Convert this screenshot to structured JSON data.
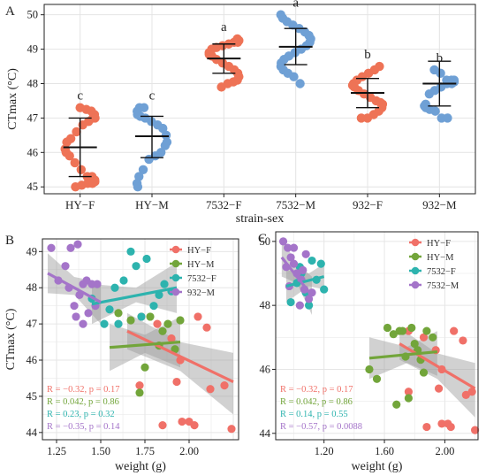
{
  "colors": {
    "HY-F": "#EE7356",
    "HY-M": "#6FA0D5",
    "pink": "#F07068",
    "green": "#72A53A",
    "teal": "#2DB3AE",
    "purple": "#A474C9"
  },
  "chart_data": [
    {
      "panel": "A",
      "type": "scatter",
      "xlabel": "strain-sex",
      "ylabel": "CTmax (°C)",
      "ylim": [
        44.8,
        50.3
      ],
      "yticks": [
        "45",
        "46",
        "47",
        "48",
        "49",
        "50"
      ],
      "categories": [
        "HY−F",
        "HY−M",
        "7532−F",
        "7532−M",
        "932−F",
        "932−M"
      ],
      "letters": [
        "c",
        "c",
        "a",
        "a",
        "b",
        "b"
      ],
      "groups": [
        {
          "name": "HY−F",
          "mean": 46.15,
          "lo": 45.3,
          "hi": 47.0,
          "values": [
            47.3,
            47.25,
            47.2,
            47.1,
            47.0,
            47.0,
            46.9,
            46.8,
            46.6,
            46.4,
            46.3,
            46.1,
            46.0,
            45.9,
            45.7,
            45.5,
            45.3,
            45.3,
            45.2,
            45.15,
            45.1,
            45.1,
            45.05,
            45.0
          ]
        },
        {
          "name": "HY−M",
          "mean": 46.47,
          "lo": 45.85,
          "hi": 47.05,
          "values": [
            47.3,
            47.3,
            47.2,
            47.1,
            47.05,
            47.0,
            46.9,
            46.8,
            46.7,
            46.5,
            46.3,
            46.2,
            46.0,
            45.9,
            45.8,
            45.5,
            45.3,
            45.1,
            45.0
          ]
        },
        {
          "name": "7532−F",
          "mean": 48.73,
          "lo": 48.3,
          "hi": 49.15,
          "values": [
            49.3,
            49.25,
            49.2,
            49.2,
            49.15,
            49.1,
            49.05,
            49.0,
            48.9,
            48.85,
            48.8,
            48.7,
            48.6,
            48.5,
            48.4,
            48.3,
            48.2,
            48.1,
            48.05,
            48.0,
            47.9
          ]
        },
        {
          "name": "7532−M",
          "mean": 49.07,
          "lo": 48.55,
          "hi": 49.6,
          "values": [
            50.0,
            49.9,
            49.8,
            49.7,
            49.6,
            49.5,
            49.4,
            49.3,
            49.2,
            49.1,
            49.0,
            48.9,
            48.8,
            48.7,
            48.6,
            48.5,
            48.4,
            48.3,
            48.2,
            48.0
          ]
        },
        {
          "name": "932−F",
          "mean": 47.73,
          "lo": 47.3,
          "hi": 48.15,
          "values": [
            48.5,
            48.4,
            48.3,
            48.2,
            48.1,
            48.0,
            47.95,
            47.9,
            47.8,
            47.7,
            47.6,
            47.5,
            47.45,
            47.4,
            47.3,
            47.2,
            47.1,
            47.0,
            47.0
          ]
        },
        {
          "name": "932−M",
          "mean": 48.0,
          "lo": 47.35,
          "hi": 48.65,
          "values": [
            48.4,
            48.3,
            48.1,
            48.1,
            48.1,
            48.05,
            48.0,
            48.0,
            47.9,
            47.8,
            47.7,
            47.4,
            47.35,
            47.3,
            47.25,
            47.2,
            47.0,
            47.0
          ]
        }
      ]
    },
    {
      "panel": "B",
      "type": "scatter",
      "xlabel": "weight (g)",
      "ylabel": "CTmax (°C)",
      "xlim": [
        1.17,
        2.28
      ],
      "ylim": [
        43.8,
        49.35
      ],
      "xticks": [
        1.25,
        1.5,
        1.75,
        2.0
      ],
      "xticklabels": [
        "1.25",
        "1.50",
        "1.75",
        "2.00"
      ],
      "yticks": [
        44,
        45,
        46,
        47,
        48,
        49
      ],
      "legend": [
        "HY−F",
        "HY−M",
        "7532−F",
        "932−M"
      ],
      "stats": [
        "R = −0.32, p = 0.17",
        "R = 0.042, p = 0.86",
        "R = 0.23, p = 0.32",
        "R = −0.35, p = 0.14"
      ],
      "series": [
        {
          "name": "HY−F",
          "color": "#F07068",
          "points": [
            [
              1.73,
              47.2
            ],
            [
              1.82,
              47.0
            ],
            [
              1.9,
              46.6
            ],
            [
              1.95,
              46.0
            ],
            [
              2.05,
              47.2
            ],
            [
              2.1,
              46.9
            ],
            [
              1.93,
              45.4
            ],
            [
              2.0,
              44.3
            ],
            [
              2.12,
              45.2
            ],
            [
              2.2,
              45.3
            ],
            [
              1.72,
              45.3
            ],
            [
              2.24,
              44.1
            ],
            [
              1.96,
              44.3
            ],
            [
              2.03,
              44.2
            ],
            [
              1.85,
              44.2
            ]
          ],
          "line": [
            [
              1.65,
              46.8
            ],
            [
              2.25,
              45.4
            ]
          ],
          "band": [
            [
              1.65,
              47.3,
              46.3
            ],
            [
              1.95,
              46.5,
              45.7
            ],
            [
              2.25,
              46.2,
              44.5
            ]
          ]
        },
        {
          "name": "HY−M",
          "color": "#72A53A",
          "points": [
            [
              1.6,
              47.3
            ],
            [
              1.67,
              47.1
            ],
            [
              1.72,
              45.1
            ],
            [
              1.78,
              47.2
            ],
            [
              1.83,
              46.4
            ],
            [
              1.88,
              47.0
            ],
            [
              1.92,
              46.3
            ],
            [
              1.75,
              45.8
            ],
            [
              1.95,
              47.1
            ],
            [
              1.85,
              46.8
            ]
          ],
          "line": [
            [
              1.55,
              46.35
            ],
            [
              1.95,
              46.5
            ]
          ],
          "band": [
            [
              1.55,
              47.0,
              45.7
            ],
            [
              1.75,
              46.7,
              46.2
            ],
            [
              1.95,
              47.2,
              45.8
            ]
          ]
        },
        {
          "name": "7532−F",
          "color": "#2DB3AE",
          "points": [
            [
              1.45,
              47.7
            ],
            [
              1.52,
              47.0
            ],
            [
              1.55,
              47.4
            ],
            [
              1.58,
              48.0
            ],
            [
              1.6,
              47.0
            ],
            [
              1.63,
              48.2
            ],
            [
              1.67,
              49.0
            ],
            [
              1.7,
              48.6
            ],
            [
              1.73,
              47.2
            ],
            [
              1.76,
              48.8
            ],
            [
              1.8,
              47.5
            ],
            [
              1.86,
              48.1
            ],
            [
              1.9,
              47.9
            ],
            [
              1.83,
              47.8
            ]
          ],
          "line": [
            [
              1.45,
              47.55
            ],
            [
              1.93,
              48.0
            ]
          ],
          "band": [
            [
              1.45,
              48.1,
              47.0
            ],
            [
              1.7,
              48.0,
              47.6
            ],
            [
              1.93,
              48.7,
              47.3
            ]
          ]
        },
        {
          "name": "932−M",
          "color": "#A474C9",
          "points": [
            [
              1.22,
              49.1
            ],
            [
              1.3,
              48.6
            ],
            [
              1.33,
              49.1
            ],
            [
              1.37,
              49.2
            ],
            [
              1.4,
              48.1
            ],
            [
              1.26,
              48.2
            ],
            [
              1.32,
              48.0
            ],
            [
              1.35,
              47.5
            ],
            [
              1.36,
              47.2
            ],
            [
              1.4,
              47.0
            ],
            [
              1.43,
              47.3
            ],
            [
              1.45,
              48.1
            ],
            [
              1.42,
              48.2
            ],
            [
              1.47,
              47.5
            ],
            [
              1.48,
              48.1
            ],
            [
              1.38,
              47.8
            ]
          ],
          "line": [
            [
              1.2,
              48.4
            ],
            [
              1.5,
              47.6
            ]
          ],
          "band": [
            [
              1.2,
              48.95,
              47.85
            ],
            [
              1.35,
              48.3,
              47.8
            ],
            [
              1.5,
              48.15,
              47.0
            ]
          ]
        }
      ]
    },
    {
      "panel": "C",
      "type": "scatter",
      "xlabel": "weight (g)",
      "xlim": [
        0.88,
        2.22
      ],
      "ylim": [
        43.8,
        50.3
      ],
      "xticks": [
        1.2,
        1.6,
        2.0
      ],
      "xticklabels": [
        "1.20",
        "1.60",
        "2.00"
      ],
      "yticks": [
        44,
        46,
        48,
        50
      ],
      "legend": [
        "HY−F",
        "HY−M",
        "7532−F",
        "7532−M"
      ],
      "stats": [
        "R = −0.32, p = 0.17",
        "R = 0.042, p = 0.86",
        "R = 0.14, p = 0.55",
        "R = −0.57, p = 0.0088"
      ],
      "series": [
        {
          "name": "HY−F",
          "color": "#F07068",
          "points": [
            [
              1.76,
              47.2
            ],
            [
              1.86,
              47.0
            ],
            [
              1.94,
              46.6
            ],
            [
              1.98,
              46.0
            ],
            [
              2.06,
              47.2
            ],
            [
              2.12,
              46.9
            ],
            [
              1.96,
              45.4
            ],
            [
              2.02,
              44.3
            ],
            [
              2.14,
              45.2
            ],
            [
              2.18,
              45.3
            ],
            [
              1.76,
              45.3
            ],
            [
              2.2,
              44.1
            ],
            [
              1.98,
              44.3
            ],
            [
              2.04,
              44.2
            ],
            [
              1.88,
              44.2
            ]
          ],
          "line": [
            [
              1.7,
              46.8
            ],
            [
              2.2,
              45.4
            ]
          ],
          "band": [
            [
              1.7,
              47.3,
              46.3
            ],
            [
              1.95,
              46.5,
              45.7
            ],
            [
              2.2,
              46.2,
              44.5
            ]
          ]
        },
        {
          "name": "HY−M",
          "color": "#72A53A",
          "points": [
            [
              1.5,
              46.0
            ],
            [
              1.55,
              45.7
            ],
            [
              1.62,
              47.3
            ],
            [
              1.66,
              47.1
            ],
            [
              1.7,
              47.2
            ],
            [
              1.74,
              46.4
            ],
            [
              1.78,
              47.3
            ],
            [
              1.8,
              46.8
            ],
            [
              1.84,
              46.3
            ],
            [
              1.88,
              47.2
            ],
            [
              1.92,
              47.0
            ],
            [
              1.76,
              45.1
            ],
            [
              1.68,
              44.9
            ],
            [
              1.86,
              45.9
            ],
            [
              1.72,
              47.2
            ],
            [
              1.82,
              46.6
            ]
          ],
          "line": [
            [
              1.5,
              46.35
            ],
            [
              1.95,
              46.55
            ]
          ],
          "band": [
            [
              1.5,
              47.0,
              45.7
            ],
            [
              1.75,
              46.7,
              46.2
            ],
            [
              1.95,
              47.2,
              45.8
            ]
          ]
        },
        {
          "name": "7532−F",
          "color": "#2DB3AE",
          "points": [
            [
              0.98,
              48.1
            ],
            [
              1.02,
              48.7
            ],
            [
              1.05,
              49.0
            ],
            [
              1.08,
              48.4
            ],
            [
              1.12,
              49.4
            ],
            [
              1.15,
              48.8
            ],
            [
              1.18,
              49.3
            ],
            [
              1.1,
              48.0
            ],
            [
              1.2,
              48.5
            ],
            [
              1.04,
              49.2
            ]
          ],
          "line": [
            [
              0.95,
              48.6
            ],
            [
              1.2,
              48.9
            ]
          ],
          "band": [
            [
              0.95,
              49.1,
              48.1
            ],
            [
              1.1,
              49.0,
              48.6
            ],
            [
              1.2,
              49.3,
              48.5
            ]
          ]
        },
        {
          "name": "7532−M",
          "color": "#A474C9",
          "points": [
            [
              0.93,
              50.0
            ],
            [
              0.96,
              49.8
            ],
            [
              0.98,
              49.5
            ],
            [
              1.0,
              49.8
            ],
            [
              0.95,
              49.2
            ],
            [
              1.02,
              49.0
            ],
            [
              1.05,
              48.8
            ],
            [
              1.07,
              48.5
            ],
            [
              1.08,
              49.6
            ],
            [
              1.1,
              48.2
            ],
            [
              0.97,
              48.6
            ],
            [
              1.04,
              48.0
            ],
            [
              1.12,
              48.4
            ],
            [
              1.0,
              49.3
            ],
            [
              1.06,
              49.1
            ]
          ],
          "line": [
            [
              0.92,
              49.5
            ],
            [
              1.12,
              48.3
            ]
          ],
          "band": [
            [
              0.92,
              50.1,
              48.9
            ],
            [
              1.02,
              49.3,
              48.7
            ],
            [
              1.12,
              48.9,
              47.7
            ]
          ]
        }
      ]
    }
  ]
}
